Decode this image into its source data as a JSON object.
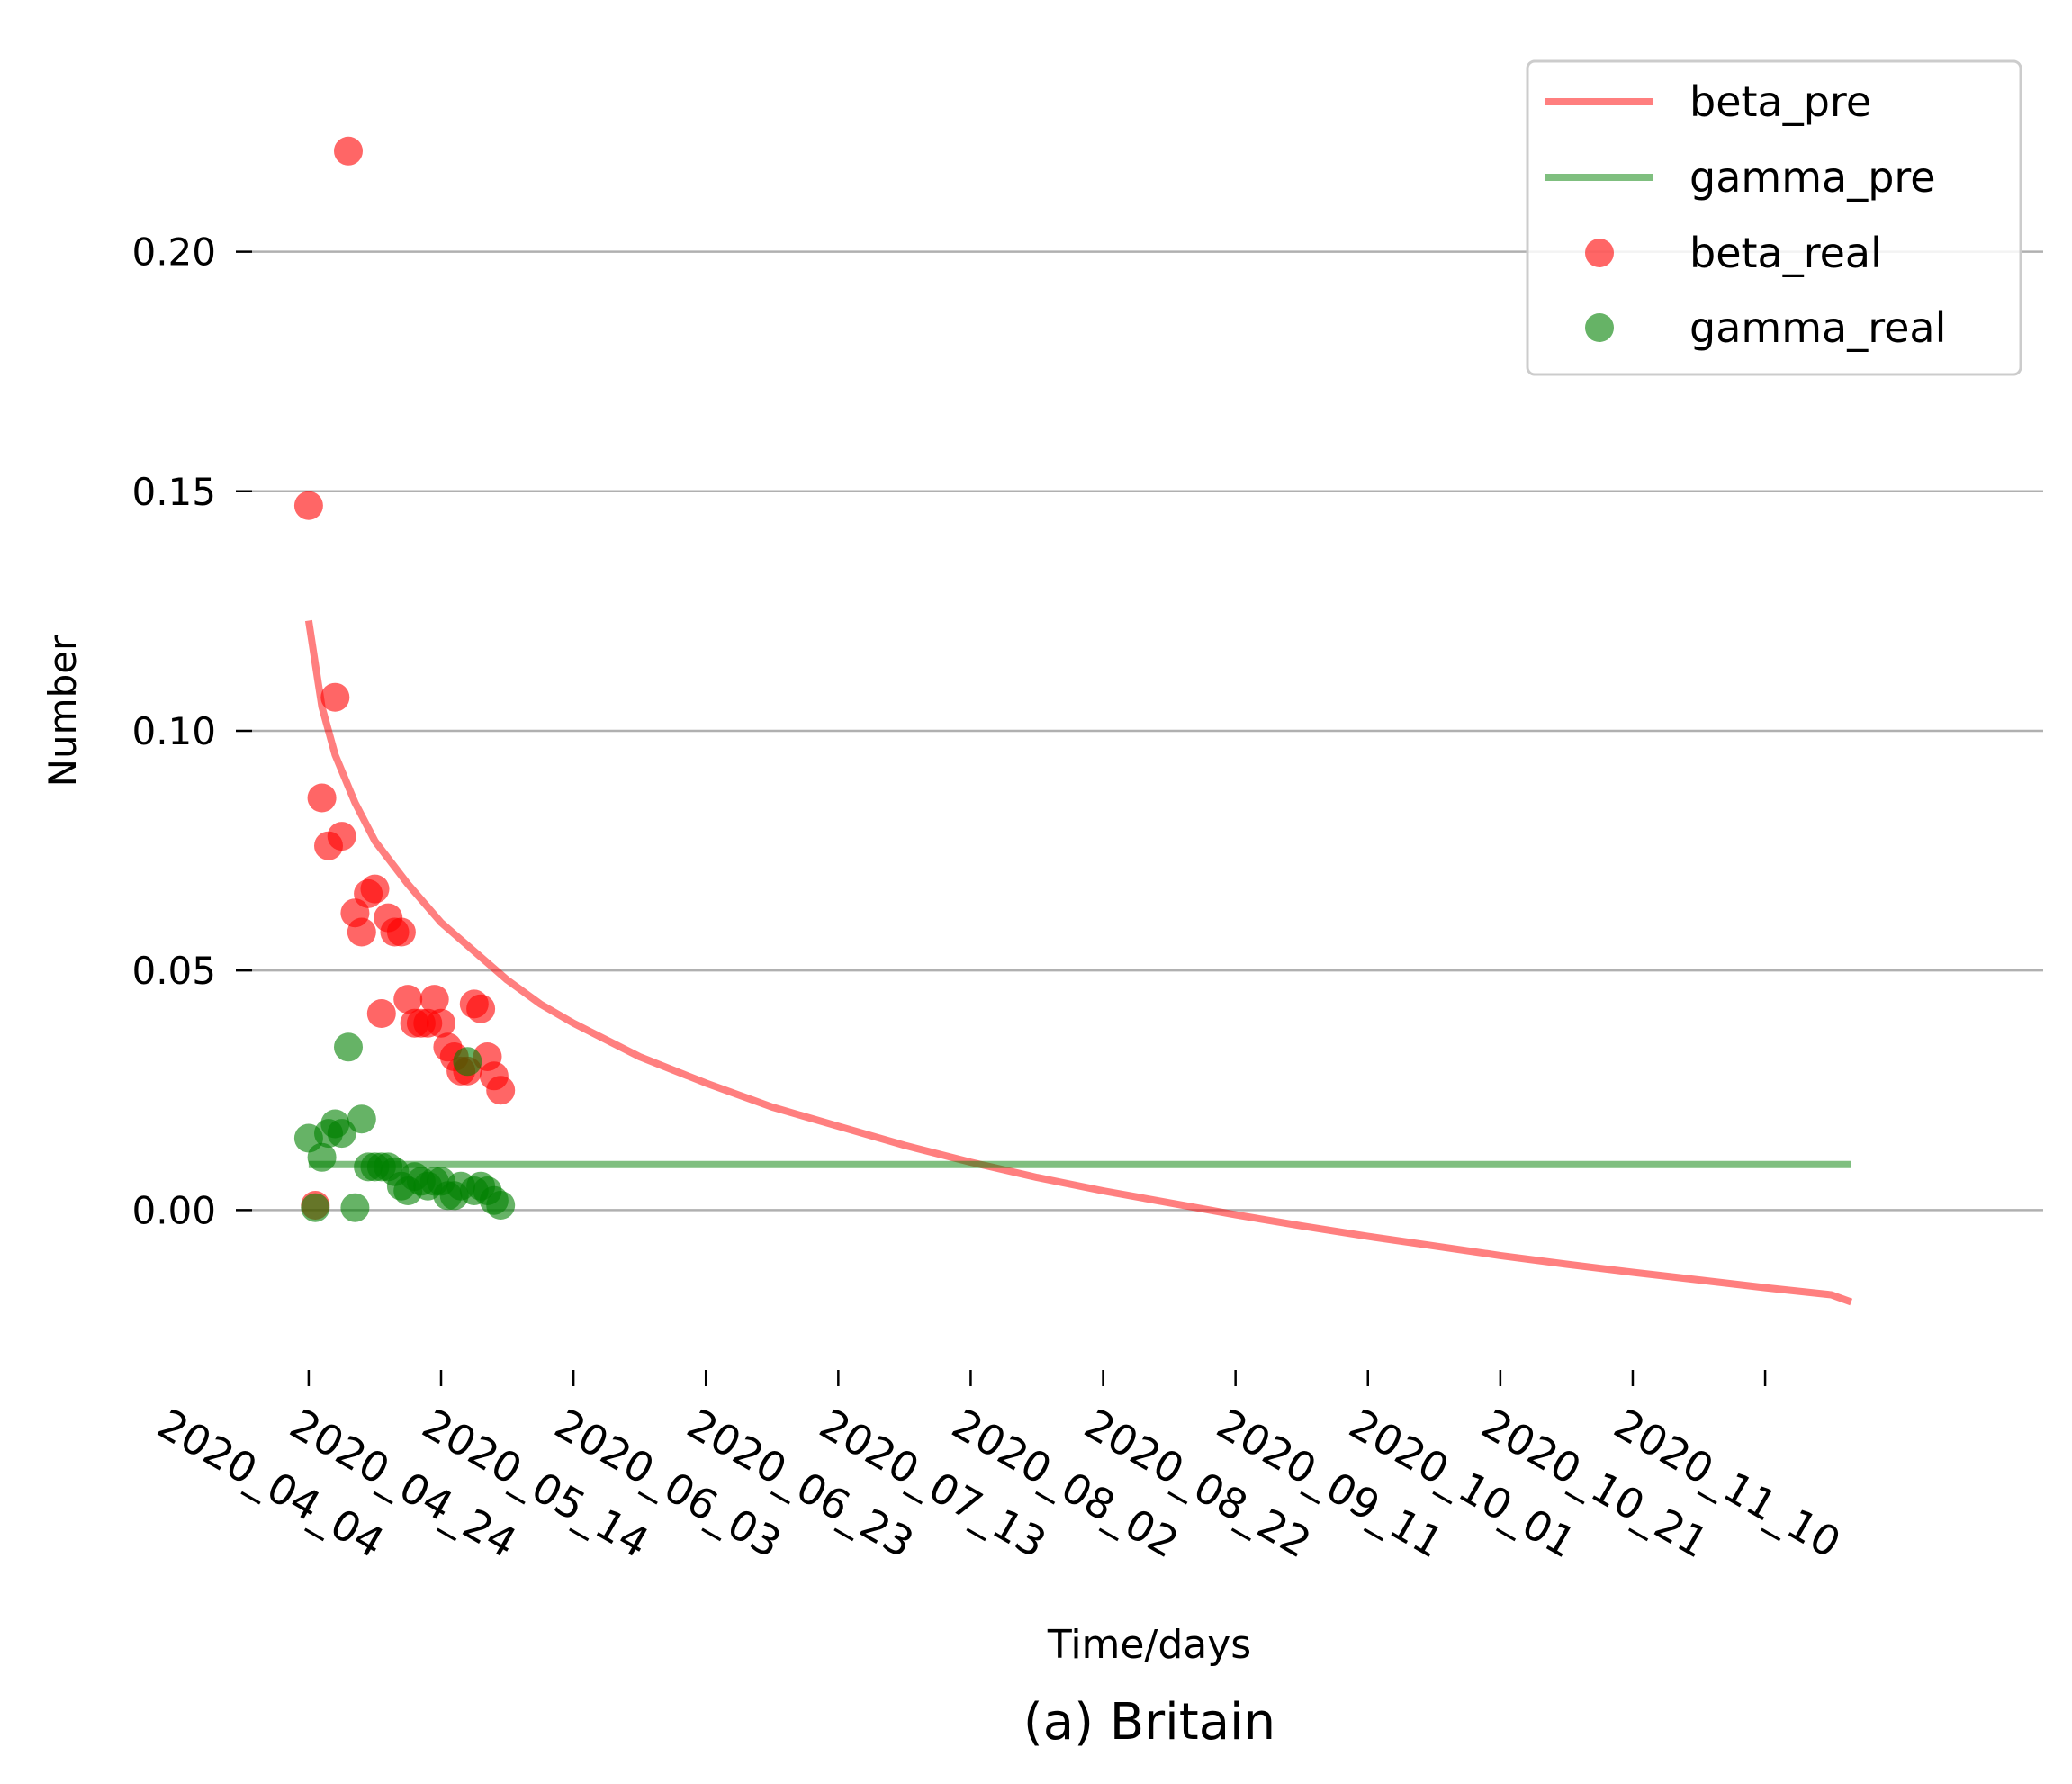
{
  "chart_data": {
    "type": "line",
    "caption": "(a) Britain",
    "xlabel": "Time/days",
    "ylabel": "Number",
    "x_tick_labels": [
      "2020_04_04",
      "2020_04_24",
      "2020_05_14",
      "2020_06_03",
      "2020_06_23",
      "2020_07_13",
      "2020_08_02",
      "2020_08_22",
      "2020_09_11",
      "2020_10_01",
      "2020_10_21",
      "2020_11_10"
    ],
    "y_tick_labels": [
      "0.00",
      "0.05",
      "0.10",
      "0.15",
      "0.20"
    ],
    "y_ticks": [
      0.0,
      0.05,
      0.1,
      0.15,
      0.2
    ],
    "xlim": [
      "2020-03-24",
      "2020-12-22"
    ],
    "ylim": [
      -0.033,
      0.245
    ],
    "grid": "horizontal",
    "legend_position": "top-right",
    "colors": {
      "beta": "#ff0000",
      "gamma": "#008000",
      "grid": "#b0b0b0"
    },
    "series": [
      {
        "name": "beta_pre",
        "kind": "line",
        "color": "#ff0000",
        "points": [
          [
            "2020-04-04",
            0.123
          ],
          [
            "2020-04-06",
            0.105
          ],
          [
            "2020-04-08",
            0.095
          ],
          [
            "2020-04-11",
            0.085
          ],
          [
            "2020-04-14",
            0.077
          ],
          [
            "2020-04-19",
            0.068
          ],
          [
            "2020-04-24",
            0.06
          ],
          [
            "2020-04-29",
            0.054
          ],
          [
            "2020-05-04",
            0.048
          ],
          [
            "2020-05-09",
            0.043
          ],
          [
            "2020-05-14",
            0.039
          ],
          [
            "2020-05-24",
            0.032
          ],
          [
            "2020-06-03",
            0.0265
          ],
          [
            "2020-06-13",
            0.0215
          ],
          [
            "2020-06-23",
            0.0175
          ],
          [
            "2020-07-03",
            0.0135
          ],
          [
            "2020-07-13",
            0.01
          ],
          [
            "2020-07-23",
            0.0068
          ],
          [
            "2020-08-02",
            0.004
          ],
          [
            "2020-08-12",
            0.0015
          ],
          [
            "2020-08-22",
            -0.001
          ],
          [
            "2020-09-01",
            -0.0033
          ],
          [
            "2020-09-11",
            -0.0055
          ],
          [
            "2020-09-21",
            -0.0075
          ],
          [
            "2020-10-01",
            -0.0095
          ],
          [
            "2020-10-11",
            -0.0113
          ],
          [
            "2020-10-21",
            -0.013
          ],
          [
            "2020-10-31",
            -0.0146
          ],
          [
            "2020-11-10",
            -0.0162
          ],
          [
            "2020-11-20",
            -0.0177
          ],
          [
            "2020-11-23",
            -0.0192
          ]
        ]
      },
      {
        "name": "gamma_pre",
        "kind": "line",
        "color": "#008000",
        "points": [
          [
            "2020-04-04",
            0.0095
          ],
          [
            "2020-11-23",
            0.0095
          ]
        ]
      },
      {
        "name": "beta_real",
        "kind": "scatter",
        "color": "#ff0000",
        "points": [
          [
            "2020-04-04",
            0.147
          ],
          [
            "2020-04-05",
            0.001
          ],
          [
            "2020-04-06",
            0.086
          ],
          [
            "2020-04-07",
            0.076
          ],
          [
            "2020-04-08",
            0.107
          ],
          [
            "2020-04-09",
            0.078
          ],
          [
            "2020-04-10",
            0.221
          ],
          [
            "2020-04-11",
            0.062
          ],
          [
            "2020-04-12",
            0.058
          ],
          [
            "2020-04-13",
            0.066
          ],
          [
            "2020-04-14",
            0.067
          ],
          [
            "2020-04-15",
            0.041
          ],
          [
            "2020-04-16",
            0.061
          ],
          [
            "2020-04-17",
            0.058
          ],
          [
            "2020-04-18",
            0.058
          ],
          [
            "2020-04-19",
            0.044
          ],
          [
            "2020-04-20",
            0.039
          ],
          [
            "2020-04-21",
            0.039
          ],
          [
            "2020-04-22",
            0.039
          ],
          [
            "2020-04-23",
            0.044
          ],
          [
            "2020-04-24",
            0.039
          ],
          [
            "2020-04-25",
            0.034
          ],
          [
            "2020-04-26",
            0.032
          ],
          [
            "2020-04-27",
            0.029
          ],
          [
            "2020-04-28",
            0.029
          ],
          [
            "2020-04-29",
            0.043
          ],
          [
            "2020-04-30",
            0.042
          ],
          [
            "2020-05-01",
            0.032
          ],
          [
            "2020-05-02",
            0.028
          ],
          [
            "2020-05-03",
            0.025
          ]
        ]
      },
      {
        "name": "gamma_real",
        "kind": "scatter",
        "color": "#008000",
        "points": [
          [
            "2020-04-04",
            0.015
          ],
          [
            "2020-04-05",
            0.0005
          ],
          [
            "2020-04-06",
            0.011
          ],
          [
            "2020-04-07",
            0.016
          ],
          [
            "2020-04-08",
            0.018
          ],
          [
            "2020-04-09",
            0.016
          ],
          [
            "2020-04-10",
            0.034
          ],
          [
            "2020-04-11",
            0.0005
          ],
          [
            "2020-04-12",
            0.019
          ],
          [
            "2020-04-13",
            0.009
          ],
          [
            "2020-04-14",
            0.009
          ],
          [
            "2020-04-15",
            0.009
          ],
          [
            "2020-04-16",
            0.009
          ],
          [
            "2020-04-17",
            0.008
          ],
          [
            "2020-04-18",
            0.005
          ],
          [
            "2020-04-19",
            0.004
          ],
          [
            "2020-04-20",
            0.007
          ],
          [
            "2020-04-21",
            0.006
          ],
          [
            "2020-04-22",
            0.005
          ],
          [
            "2020-04-23",
            0.006
          ],
          [
            "2020-04-24",
            0.006
          ],
          [
            "2020-04-25",
            0.003
          ],
          [
            "2020-04-26",
            0.003
          ],
          [
            "2020-04-27",
            0.005
          ],
          [
            "2020-04-28",
            0.031
          ],
          [
            "2020-04-29",
            0.004
          ],
          [
            "2020-04-30",
            0.005
          ],
          [
            "2020-05-01",
            0.004
          ],
          [
            "2020-05-02",
            0.002
          ],
          [
            "2020-05-03",
            0.001
          ]
        ]
      }
    ]
  }
}
